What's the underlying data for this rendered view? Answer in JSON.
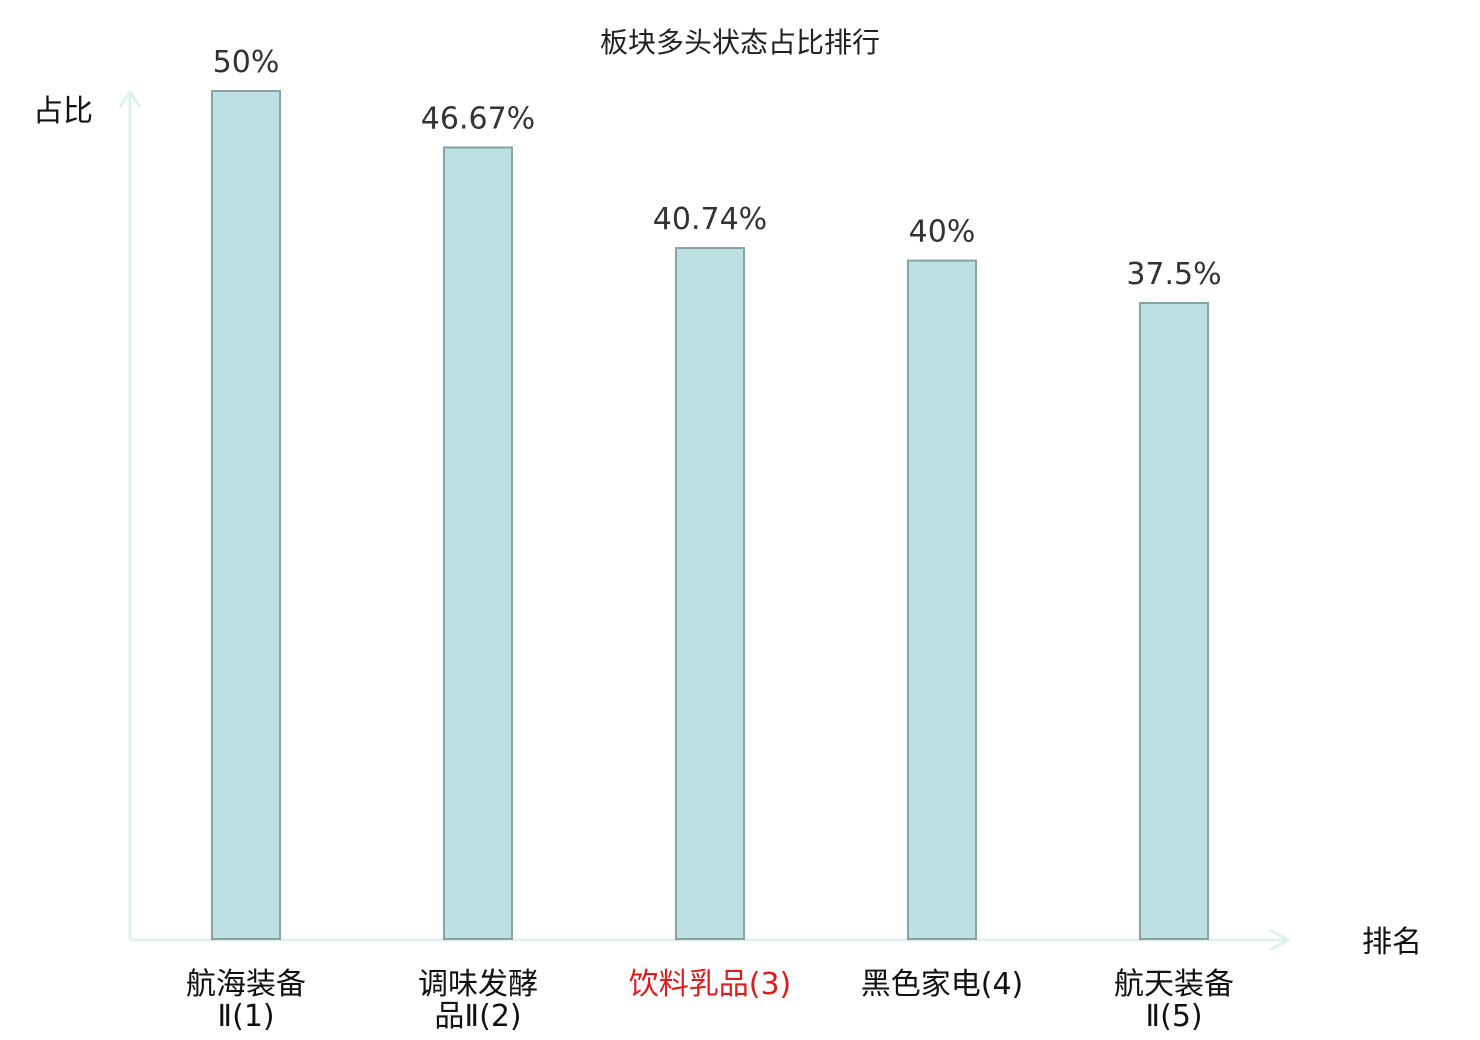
{
  "chart_data": {
    "type": "bar",
    "title": "板块多头状态占比排行",
    "ylabel": "占比",
    "xlabel": "排名",
    "ylim": [
      0,
      50
    ],
    "grid": false,
    "legend": "none",
    "categories": [
      {
        "lines": [
          "航海装备",
          "Ⅱ(1)"
        ],
        "highlight": false
      },
      {
        "lines": [
          "调味发酵",
          "品Ⅱ(2)"
        ],
        "highlight": false
      },
      {
        "lines": [
          "饮料乳品(3)"
        ],
        "highlight": true
      },
      {
        "lines": [
          "黑色家电(4)"
        ],
        "highlight": false
      },
      {
        "lines": [
          "航天装备",
          "Ⅱ(5)"
        ],
        "highlight": false
      }
    ],
    "values": [
      50,
      46.67,
      40.74,
      40,
      37.5
    ],
    "value_labels": [
      "50%",
      "46.67%",
      "40.74%",
      "40%",
      "37.5%"
    ]
  },
  "colors": {
    "bar_fill": "#bde0e2",
    "bar_stroke": "#87a3a5",
    "axis": "#dff2ef",
    "category_text": "#111111",
    "highlight_text": "#e01b1b"
  }
}
